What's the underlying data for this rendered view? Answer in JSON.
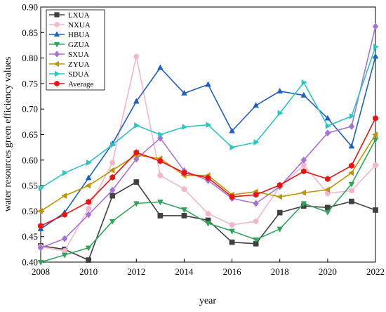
{
  "chart_data": {
    "type": "line",
    "xlabel": "year",
    "ylabel": "water resources green efficiency values",
    "xlim": [
      2008,
      2022
    ],
    "ylim": [
      0.4,
      0.9
    ],
    "x_ticks": [
      "2008",
      "2010",
      "2012",
      "2014",
      "2016",
      "2018",
      "2020",
      "2022"
    ],
    "y_ticks": [
      "0.40",
      "0.45",
      "0.50",
      "0.55",
      "0.60",
      "0.65",
      "0.70",
      "0.75",
      "0.80",
      "0.85",
      "0.90"
    ],
    "grid": false,
    "legend_position": "top-left",
    "x": [
      2008,
      2009,
      2010,
      2011,
      2012,
      2013,
      2014,
      2015,
      2016,
      2017,
      2018,
      2019,
      2020,
      2021,
      2022
    ],
    "series": [
      {
        "name": "LXUA",
        "color": "#404040",
        "marker": "square",
        "values": [
          0.432,
          0.425,
          0.404,
          0.53,
          0.557,
          0.491,
          0.491,
          0.482,
          0.439,
          0.436,
          0.497,
          0.51,
          0.507,
          0.519,
          0.502
        ]
      },
      {
        "name": "NXUA",
        "color": "#f4b6cf",
        "marker": "circle",
        "values": [
          0.43,
          0.422,
          0.505,
          0.595,
          0.803,
          0.57,
          0.543,
          0.495,
          0.473,
          0.48,
          0.548,
          0.59,
          0.535,
          0.54,
          0.59
        ]
      },
      {
        "name": "HBUA",
        "color": "#1f5fbf",
        "marker": "triangle-up",
        "values": [
          0.465,
          0.497,
          0.565,
          0.632,
          0.715,
          0.781,
          0.731,
          0.748,
          0.657,
          0.707,
          0.735,
          0.727,
          0.682,
          0.627,
          0.803
        ]
      },
      {
        "name": "GZUA",
        "color": "#2ea65a",
        "marker": "triangle-down",
        "values": [
          0.4,
          0.414,
          0.428,
          0.48,
          0.515,
          0.518,
          0.503,
          0.476,
          0.461,
          0.444,
          0.465,
          0.515,
          0.498,
          0.553,
          0.64
        ]
      },
      {
        "name": "SXUA",
        "color": "#a772d6",
        "marker": "diamond",
        "values": [
          0.428,
          0.446,
          0.493,
          0.541,
          0.602,
          0.643,
          0.579,
          0.56,
          0.525,
          0.515,
          0.548,
          0.6,
          0.653,
          0.666,
          0.862
        ]
      },
      {
        "name": "ZYUA",
        "color": "#bf9400",
        "marker": "triangle-left",
        "values": [
          0.5,
          0.53,
          0.55,
          0.58,
          0.61,
          0.603,
          0.57,
          0.57,
          0.532,
          0.538,
          0.528,
          0.536,
          0.542,
          0.575,
          0.65
        ]
      },
      {
        "name": "SDUA",
        "color": "#2cc4c4",
        "marker": "triangle-right",
        "values": [
          0.545,
          0.575,
          0.595,
          0.63,
          0.668,
          0.65,
          0.665,
          0.669,
          0.625,
          0.635,
          0.692,
          0.752,
          0.667,
          0.686,
          0.822
        ]
      },
      {
        "name": "Average",
        "color": "#ee1111",
        "marker": "hexagon",
        "values": [
          0.471,
          0.493,
          0.518,
          0.566,
          0.615,
          0.598,
          0.575,
          0.565,
          0.528,
          0.532,
          0.551,
          0.578,
          0.563,
          0.589,
          0.682
        ]
      }
    ]
  }
}
